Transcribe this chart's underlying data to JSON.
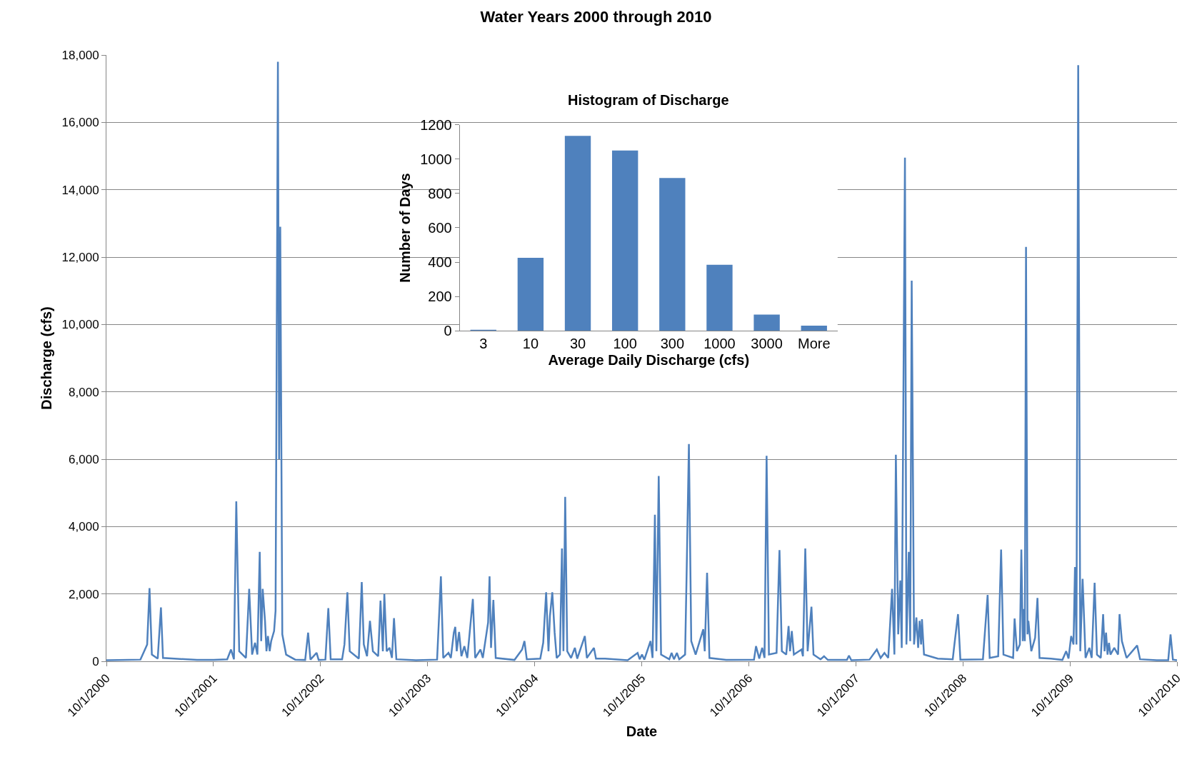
{
  "chart_data": [
    {
      "type": "line",
      "title": "Water Years 2000 through 2010",
      "xlabel": "Date",
      "ylabel": "Discharge (cfs)",
      "grid": "y",
      "marker": "none",
      "line_style": "solid",
      "xlim": [
        "2000-10-01",
        "2010-10-01"
      ],
      "xticks": [
        {
          "value": "2000-10-01",
          "label": "10/1/2000"
        },
        {
          "value": "2001-10-01",
          "label": "10/1/2001"
        },
        {
          "value": "2002-10-01",
          "label": "10/1/2002"
        },
        {
          "value": "2003-10-01",
          "label": "10/1/2003"
        },
        {
          "value": "2004-10-01",
          "label": "10/1/2004"
        },
        {
          "value": "2005-10-01",
          "label": "10/1/2005"
        },
        {
          "value": "2006-10-01",
          "label": "10/1/2006"
        },
        {
          "value": "2007-10-01",
          "label": "10/1/2007"
        },
        {
          "value": "2008-10-01",
          "label": "10/1/2008"
        },
        {
          "value": "2009-10-01",
          "label": "10/1/2009"
        },
        {
          "value": "2010-10-01",
          "label": "10/1/2010"
        }
      ],
      "ylim": [
        0,
        18000
      ],
      "yticks": [
        0,
        {
          "value": 2000,
          "label": "2,000"
        },
        {
          "value": 4000,
          "label": "4,000"
        },
        {
          "value": 6000,
          "label": "6,000"
        },
        {
          "value": 8000,
          "label": "8,000"
        },
        {
          "value": 10000,
          "label": "10,000"
        },
        {
          "value": 12000,
          "label": "12,000"
        },
        {
          "value": 14000,
          "label": "14,000"
        },
        {
          "value": 16000,
          "label": "16,000"
        },
        {
          "value": 18000,
          "label": "18,000"
        }
      ],
      "series": [
        {
          "color": "#4f81bd",
          "x": [
            "2000-10-01",
            "2001-01-25",
            "2001-02-07",
            "2001-02-17",
            "2001-02-25",
            "2001-03-05",
            "2001-03-25",
            "2001-04-05",
            "2001-04-12",
            "2001-05-21",
            "2001-08-06",
            "2001-10-02",
            "2001-11-17",
            "2001-11-30",
            "2001-12-10",
            "2001-12-18",
            "2001-12-28",
            "2002-01-20",
            "2002-01-31",
            "2002-02-10",
            "2002-02-20",
            "2002-02-28",
            "2002-03-08",
            "2002-03-13",
            "2002-03-18",
            "2002-03-26",
            "2002-03-31",
            "2002-04-05",
            "2002-04-11",
            "2002-04-16",
            "2002-04-26",
            "2002-05-01",
            "2002-05-09",
            "2002-05-13",
            "2002-05-17",
            "2002-05-24",
            "2002-06-06",
            "2002-07-07",
            "2002-08-10",
            "2002-08-20",
            "2002-08-28",
            "2002-09-18",
            "2002-09-25",
            "2002-10-18",
            "2002-10-28",
            "2002-11-05",
            "2002-12-14",
            "2002-12-22",
            "2003-01-01",
            "2003-01-09",
            "2003-02-09",
            "2003-02-19",
            "2003-02-26",
            "2003-03-09",
            "2003-03-19",
            "2003-03-29",
            "2003-04-16",
            "2003-04-24",
            "2003-05-02",
            "2003-05-07",
            "2003-05-15",
            "2003-05-25",
            "2003-06-02",
            "2003-06-09",
            "2003-06-17",
            "2003-08-23",
            "2003-11-03",
            "2003-11-16",
            "2003-11-24",
            "2003-12-12",
            "2003-12-20",
            "2003-12-30",
            "2004-01-04",
            "2004-01-09",
            "2004-01-17",
            "2004-01-25",
            "2004-02-04",
            "2004-02-14",
            "2004-03-04",
            "2004-03-12",
            "2004-03-30",
            "2004-04-07",
            "2004-04-25",
            "2004-04-30",
            "2004-05-05",
            "2004-05-13",
            "2004-05-21",
            "2004-07-24",
            "2004-08-19",
            "2004-08-27",
            "2004-09-04",
            "2004-10-20",
            "2004-10-30",
            "2004-11-09",
            "2004-11-17",
            "2004-11-22",
            "2004-11-30",
            "2004-12-08",
            "2004-12-15",
            "2004-12-26",
            "2005-01-02",
            "2005-01-07",
            "2005-01-13",
            "2005-01-20",
            "2005-02-02",
            "2005-02-15",
            "2005-02-23",
            "2005-03-21",
            "2005-03-28",
            "2005-04-21",
            "2005-04-28",
            "2005-05-29",
            "2005-08-14",
            "2005-09-17",
            "2005-09-24",
            "2005-10-02",
            "2005-10-10",
            "2005-10-31",
            "2005-11-07",
            "2005-11-15",
            "2005-11-20",
            "2005-11-28",
            "2005-12-06",
            "2006-01-03",
            "2006-01-11",
            "2006-01-19",
            "2006-01-29",
            "2006-02-06",
            "2006-02-26",
            "2006-03-03",
            "2006-03-11",
            "2006-03-19",
            "2006-04-03",
            "2006-04-29",
            "2006-05-04",
            "2006-05-12",
            "2006-05-20",
            "2006-07-16",
            "2006-10-19",
            "2006-10-26",
            "2006-11-06",
            "2006-11-16",
            "2006-11-24",
            "2006-12-01",
            "2006-12-09",
            "2007-01-04",
            "2007-01-12",
            "2007-01-14",
            "2007-01-22",
            "2007-02-06",
            "2007-02-14",
            "2007-02-19",
            "2007-02-25",
            "2007-03-04",
            "2007-03-30",
            "2007-04-04",
            "2007-04-12",
            "2007-04-20",
            "2007-05-03",
            "2007-05-10",
            "2007-06-03",
            "2007-06-15",
            "2007-06-28",
            "2007-09-01",
            "2007-09-08",
            "2007-09-16",
            "2007-11-17",
            "2007-12-12",
            "2007-12-25",
            "2008-01-07",
            "2008-01-20",
            "2008-02-02",
            "2008-02-10",
            "2008-02-15",
            "2008-02-23",
            "2008-03-01",
            "2008-03-06",
            "2008-03-17",
            "2008-03-22",
            "2008-03-30",
            "2008-04-04",
            "2008-04-09",
            "2008-04-17",
            "2008-04-25",
            "2008-05-01",
            "2008-05-06",
            "2008-05-11",
            "2008-05-14",
            "2008-05-21",
            "2008-07-07",
            "2008-08-27",
            "2008-09-01",
            "2008-09-14",
            "2008-09-22",
            "2008-12-08",
            "2008-12-24",
            "2008-12-31",
            "2009-01-29",
            "2009-02-08",
            "2009-02-16",
            "2009-03-21",
            "2009-03-26",
            "2009-04-03",
            "2009-04-13",
            "2009-04-18",
            "2009-04-23",
            "2009-04-26",
            "2009-04-30",
            "2009-05-04",
            "2009-05-09",
            "2009-05-12",
            "2009-05-22",
            "2009-06-04",
            "2009-06-12",
            "2009-06-19",
            "2009-07-28",
            "2009-09-05",
            "2009-09-18",
            "2009-09-26",
            "2009-10-05",
            "2009-10-13",
            "2009-10-18",
            "2009-10-23",
            "2009-10-29",
            "2009-11-05",
            "2009-11-13",
            "2009-11-23",
            "2009-12-06",
            "2009-12-14",
            "2009-12-24",
            "2010-01-01",
            "2010-01-14",
            "2010-01-22",
            "2010-01-27",
            "2010-02-01",
            "2010-02-06",
            "2010-02-11",
            "2010-02-16",
            "2010-03-01",
            "2010-03-14",
            "2010-03-19",
            "2010-03-27",
            "2010-04-12",
            "2010-05-18",
            "2010-05-28",
            "2010-07-24",
            "2010-09-01",
            "2010-09-09",
            "2010-09-17",
            "2010-10-01"
          ],
          "values": [
            30,
            50,
            300,
            500,
            2170,
            200,
            80,
            1600,
            100,
            80,
            40,
            40,
            60,
            350,
            60,
            4750,
            300,
            100,
            2150,
            200,
            550,
            200,
            3250,
            600,
            2150,
            1200,
            300,
            750,
            300,
            600,
            900,
            1500,
            17800,
            6000,
            12900,
            800,
            200,
            50,
            40,
            850,
            50,
            250,
            40,
            50,
            1580,
            60,
            60,
            500,
            2050,
            300,
            80,
            2350,
            500,
            150,
            1200,
            300,
            150,
            1800,
            300,
            2000,
            300,
            400,
            100,
            1280,
            60,
            30,
            50,
            2520,
            100,
            250,
            100,
            850,
            1020,
            300,
            870,
            150,
            450,
            100,
            1850,
            100,
            350,
            100,
            1150,
            2520,
            400,
            1820,
            100,
            40,
            350,
            600,
            60,
            80,
            550,
            2050,
            300,
            1350,
            2050,
            850,
            100,
            200,
            3350,
            300,
            4880,
            300,
            100,
            400,
            80,
            750,
            100,
            400,
            80,
            80,
            30,
            250,
            60,
            200,
            50,
            600,
            100,
            4350,
            300,
            5500,
            200,
            60,
            250,
            60,
            250,
            60,
            200,
            2500,
            6450,
            600,
            200,
            950,
            300,
            2630,
            100,
            40,
            50,
            450,
            80,
            400,
            100,
            6100,
            200,
            250,
            2750,
            3300,
            300,
            200,
            1050,
            300,
            900,
            200,
            350,
            150,
            3350,
            300,
            1620,
            200,
            60,
            150,
            40,
            40,
            170,
            30,
            50,
            350,
            100,
            250,
            100,
            2150,
            200,
            6130,
            800,
            2400,
            400,
            14950,
            500,
            3250,
            600,
            11300,
            500,
            1300,
            400,
            1200,
            500,
            1250,
            200,
            80,
            60,
            450,
            1400,
            50,
            60,
            1970,
            100,
            150,
            3320,
            200,
            100,
            1270,
            300,
            500,
            3320,
            600,
            1550,
            600,
            12300,
            800,
            1200,
            300,
            700,
            1880,
            100,
            80,
            40,
            300,
            80,
            750,
            500,
            2800,
            500,
            17700,
            300,
            2450,
            100,
            400,
            100,
            2330,
            200,
            100,
            1400,
            300,
            850,
            200,
            550,
            200,
            400,
            200,
            1400,
            600,
            100,
            470,
            60,
            30,
            30,
            800,
            50,
            30
          ]
        }
      ]
    },
    {
      "type": "bar",
      "title": "Histogram of Discharge",
      "xlabel": "Average Daily Discharge (cfs)",
      "ylabel": "Number of Days",
      "grid": false,
      "categories": [
        "3",
        "10",
        "30",
        "100",
        "300",
        "1000",
        "3000",
        "More"
      ],
      "ylim": [
        0,
        1200
      ],
      "yticks": [
        0,
        200,
        400,
        600,
        800,
        1000,
        1200
      ],
      "series": [
        {
          "color": "#4f81bd",
          "values": [
            5,
            425,
            1135,
            1050,
            890,
            385,
            95,
            30
          ]
        }
      ]
    }
  ]
}
